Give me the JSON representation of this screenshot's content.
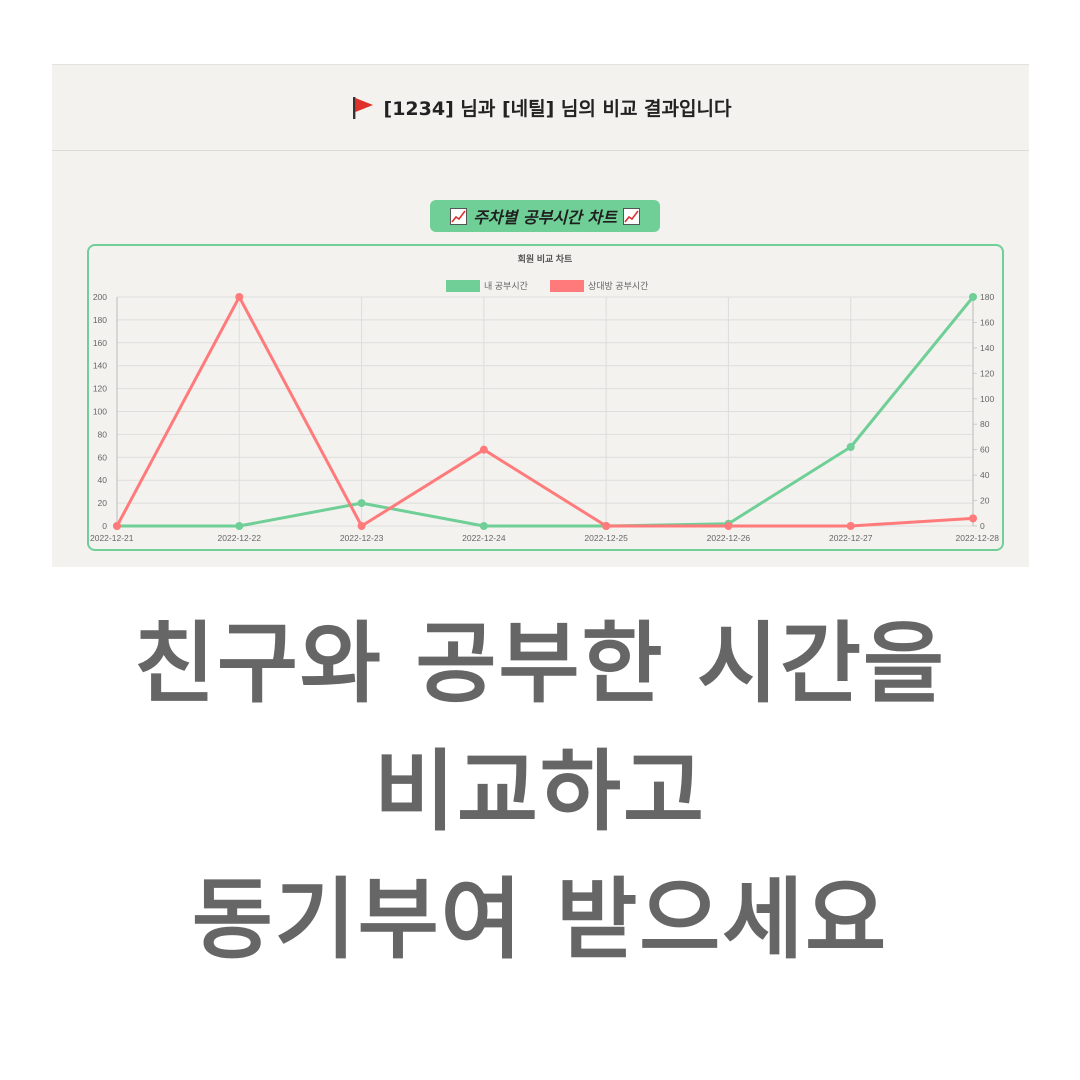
{
  "header": {
    "title": "[1234] 님과 [네틸] 님의 비교 결과입니다",
    "flag_icon": "red-flag-icon"
  },
  "badge": {
    "label": "주차별 공부시간 차트",
    "icon": "chart-increasing-icon"
  },
  "chart_data": {
    "type": "line",
    "title": "회원 비교 차트",
    "categories": [
      "2022-12-21",
      "2022-12-22",
      "2022-12-23",
      "2022-12-24",
      "2022-12-25",
      "2022-12-26",
      "2022-12-27",
      "2022-12-28"
    ],
    "series": [
      {
        "name": "내 공부시간",
        "values": [
          0,
          0,
          20,
          0,
          0,
          2,
          69,
          200
        ],
        "color": "#6fcf97",
        "axis": "left"
      },
      {
        "name": "상대방 공부시간",
        "values": [
          0,
          180,
          0,
          60,
          0,
          0,
          0,
          6
        ],
        "color": "#ff7b7b",
        "axis": "right"
      }
    ],
    "ylim_left": [
      0,
      200
    ],
    "ylim_right": [
      0,
      180
    ],
    "yticks_left": [
      0,
      20,
      40,
      60,
      80,
      100,
      120,
      140,
      160,
      180,
      200
    ],
    "yticks_right": [
      0,
      20,
      40,
      60,
      80,
      100,
      120,
      140,
      160,
      180
    ],
    "grid": true,
    "legend": "top"
  },
  "headline": {
    "line1": "친구와 공부한 시간을",
    "line2": "비교하고",
    "line3": "동기부여 받으세요"
  }
}
